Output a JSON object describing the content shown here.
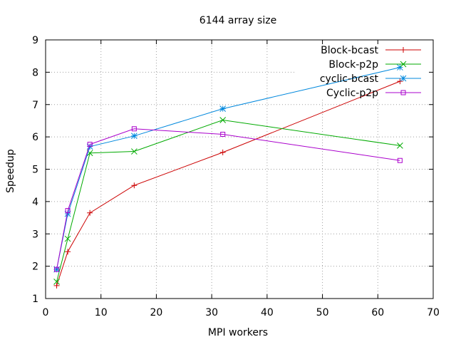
{
  "chart_data": {
    "type": "line",
    "title": "6144 array size",
    "xlabel": "MPI workers",
    "ylabel": "Speedup",
    "xlim": [
      0,
      70
    ],
    "ylim": [
      1,
      9
    ],
    "xticks": [
      0,
      10,
      20,
      30,
      40,
      50,
      60,
      70
    ],
    "yticks": [
      1,
      2,
      3,
      4,
      5,
      6,
      7,
      8,
      9
    ],
    "grid": true,
    "legend_position": "top-right",
    "series": [
      {
        "name": "Block-bcast",
        "color": "#cc0000",
        "marker": "plus",
        "x": [
          2,
          4,
          8,
          16,
          32,
          64
        ],
        "y": [
          1.4,
          2.45,
          3.65,
          4.5,
          5.52,
          7.72
        ]
      },
      {
        "name": "Block-p2p",
        "color": "#00aa00",
        "marker": "cross",
        "x": [
          2,
          4,
          8,
          16,
          32,
          64
        ],
        "y": [
          1.52,
          2.85,
          5.5,
          5.55,
          6.52,
          5.73
        ]
      },
      {
        "name": "cyclic-bcast",
        "color": "#0088dd",
        "marker": "star",
        "x": [
          2,
          4,
          8,
          16,
          32,
          64
        ],
        "y": [
          1.9,
          3.62,
          5.7,
          6.03,
          6.87,
          8.15
        ]
      },
      {
        "name": "Cyclic-p2p",
        "color": "#aa00cc",
        "marker": "square",
        "x": [
          2,
          4,
          8,
          16,
          32,
          64
        ],
        "y": [
          1.9,
          3.72,
          5.77,
          6.25,
          6.08,
          5.27
        ]
      }
    ]
  }
}
